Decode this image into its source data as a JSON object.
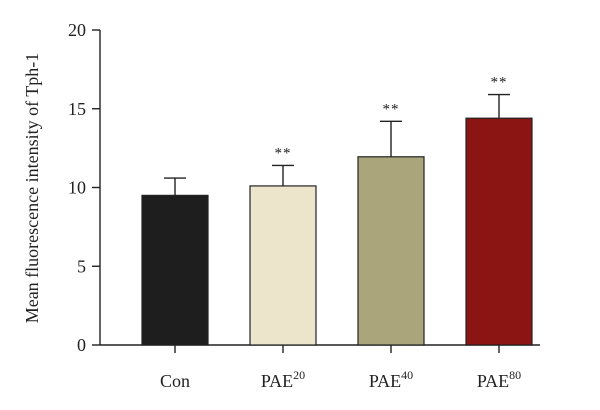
{
  "chart_data": {
    "type": "bar",
    "title": "",
    "xlabel": "",
    "ylabel": "Mean fluorescence intensity of Tph-1",
    "ylim": [
      0,
      20
    ],
    "yticks": [
      0,
      5,
      10,
      15,
      20
    ],
    "categories": [
      {
        "base": "Con",
        "sup": ""
      },
      {
        "base": "PAE",
        "sup": "20"
      },
      {
        "base": "PAE",
        "sup": "40"
      },
      {
        "base": "PAE",
        "sup": "80"
      }
    ],
    "values": [
      9.5,
      10.1,
      11.95,
      14.4
    ],
    "error": [
      1.1,
      1.3,
      2.25,
      1.5
    ],
    "significance": [
      "",
      "**",
      "**",
      "**"
    ],
    "colors": [
      "#1e1e1e",
      "#ece5cc",
      "#aaa57b",
      "#8a1512"
    ],
    "grid": false,
    "legend": false
  }
}
